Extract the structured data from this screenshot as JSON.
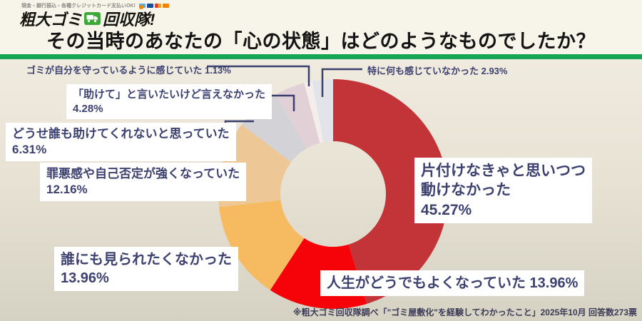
{
  "header": {
    "tagline": "現金・銀行振込・各種クレジットカード支払いOK!",
    "logo": {
      "text_left": "粗大ゴミ",
      "text_right": "回収隊!",
      "truck_icon": "truck-icon"
    },
    "title": "その当時のあなたの「心の状態」はどのようなものでしたか？"
  },
  "chart_data": {
    "type": "pie",
    "subtype": "donut",
    "title": "その当時のあなたの「心の状態」はどのようなものでしたか？",
    "start_angle_deg": 0,
    "direction": "clockwise",
    "unit": "%",
    "total": 100,
    "segments": [
      {
        "label": "片付けなきゃと思いつつ動けなかった",
        "value": 45.27,
        "color": "#c23438"
      },
      {
        "label": "人生がどうでもよくなっていた",
        "value": 13.96,
        "color": "#f60309"
      },
      {
        "label": "誰にも見られたくなかった",
        "value": 13.96,
        "color": "#f6bb61"
      },
      {
        "label": "罪悪感や自己否定が強くなっていた",
        "value": 12.16,
        "color": "#edc795"
      },
      {
        "label": "どうせ誰も助けてくれないと思っていた",
        "value": 6.31,
        "color": "#d3d2d6"
      },
      {
        "label": "「助けて」と言いたいけど言えなかった",
        "value": 4.28,
        "color": "#e1d1d6"
      },
      {
        "label": "ゴミが自分を守っているように感じていた",
        "value": 1.13,
        "color": "#f3eeec"
      },
      {
        "label": "特に何も感じていなかった",
        "value": 2.93,
        "color": "#e3e4e9"
      }
    ]
  },
  "labels": {
    "trash_protect": {
      "text": "ゴミが自分を守っているように感じていた 1.13%"
    },
    "nothing": {
      "text": "特に何も感じていなかった 2.93%"
    },
    "help": {
      "line1": "「助けて」と言いたいけど言えなかった",
      "line2": "4.28%"
    },
    "hopeless": {
      "line1": "どうせ誰も助けてくれないと思っていた",
      "line2": "6.31%"
    },
    "guilt": {
      "line1": "罪悪感や自己否定が強くなっていた",
      "line2": "12.16%"
    },
    "seen": {
      "line1": "誰にも見られたくなかった",
      "line2": "13.96%"
    },
    "life": {
      "text": "人生がどうでもよくなっていた 13.96%"
    },
    "move": {
      "line1": "片付けなきゃと思いつつ",
      "line2": "動けなかった",
      "line3": "45.27%"
    }
  },
  "footer": {
    "note": "※粗大ゴミ回収隊調べ「\"ゴミ屋敷化\"を経験してわかったこと」2025年10月 回答数273票"
  },
  "colors": {
    "accent_green": "#17a556",
    "label_text": "#3d4170",
    "label_box_bg": "#ffffff",
    "leader_line": "#3b3f6e",
    "background_top": "#f7f4ea",
    "background_chart": "#e7e2d4"
  }
}
